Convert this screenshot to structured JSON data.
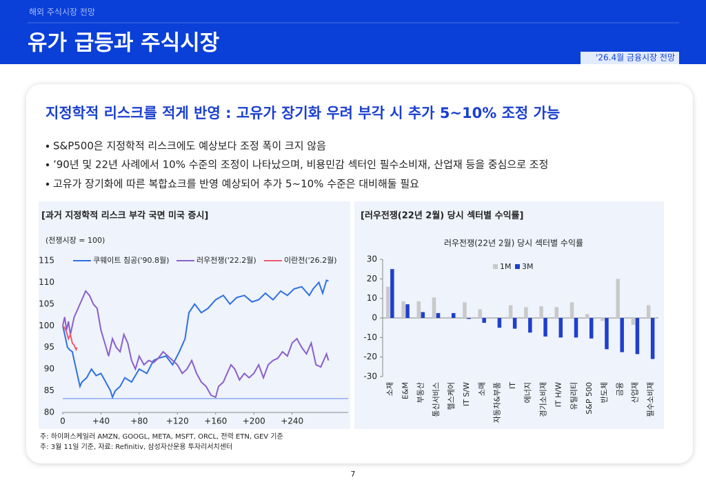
{
  "header": {
    "section": "해외 주식시장 전망",
    "title": "유가 급등과 주식시장",
    "badge": "'26.4월 금융시장 전망"
  },
  "headline": "지정학적 리스크를 적게 반영 : 고유가 장기화 우려 부각 시 추가 5~10% 조정 가능",
  "bullets": [
    "S&P500은 지정학적 리스크에도 예상보다 조정 폭이 크지 않음",
    "’90년 및 22년 사례에서 10% 수준의 조정이 나타났으며, 비용민감 섹터인 필수소비재, 산업재 등을 중심으로 조정",
    "고유가 장기화에 따른 복합쇼크를 반영 예상되어 추가 5~10% 수준은 대비해둘 필요"
  ],
  "chart_data": [
    {
      "type": "line",
      "panel_title": "[과거 지정학적 리스크 부각 국면 미국 증시]",
      "unit_label": "(전쟁시장 = 100)",
      "xlim": [
        0,
        290
      ],
      "xticks": [
        0,
        {
          "value": 40,
          "label": "+40"
        },
        {
          "value": 80,
          "label": "+80"
        },
        {
          "value": 120,
          "label": "+120"
        },
        {
          "value": 160,
          "label": "+160"
        },
        {
          "value": 200,
          "label": "+200"
        },
        {
          "value": 240,
          "label": "+240"
        }
      ],
      "ylim": [
        80,
        115
      ],
      "yticks": [
        80,
        85,
        90,
        95,
        100,
        105,
        110,
        115
      ],
      "reference_line": {
        "value": 83.2,
        "color": "#7a9ee8"
      },
      "series": [
        {
          "name": "쿠웨이트 침공('90.8월)",
          "color": "#2f6fe0",
          "x": [
            0,
            3,
            5,
            7,
            10,
            12,
            15,
            18,
            20,
            25,
            30,
            35,
            40,
            45,
            50,
            52,
            55,
            60,
            65,
            72,
            80,
            88,
            95,
            100,
            108,
            115,
            122,
            128,
            132,
            138,
            145,
            152,
            160,
            168,
            175,
            182,
            190,
            198,
            205,
            212,
            220,
            228,
            235,
            242,
            250,
            258,
            262,
            268,
            272,
            276,
            278
          ],
          "values": [
            100,
            97,
            95,
            94.5,
            94,
            92,
            89,
            86,
            87,
            88,
            90,
            88.5,
            89,
            87,
            85,
            83.5,
            85,
            86,
            88,
            87,
            90,
            89,
            92,
            92.5,
            93,
            91,
            94,
            97,
            103,
            105,
            103,
            104,
            106,
            107,
            105,
            106.5,
            107,
            105.5,
            106,
            107.5,
            106,
            108,
            107,
            108.5,
            109,
            107,
            108.5,
            110,
            107.5,
            110.5,
            110.3
          ]
        },
        {
          "name": "러우전쟁('22.2월)",
          "color": "#8a5ec9",
          "x": [
            0,
            2,
            4,
            6,
            8,
            12,
            16,
            20,
            24,
            28,
            32,
            36,
            40,
            44,
            48,
            52,
            56,
            60,
            64,
            68,
            72,
            76,
            80,
            85,
            90,
            95,
            100,
            105,
            110,
            115,
            120,
            125,
            130,
            135,
            140,
            145,
            150,
            155,
            160,
            163,
            168,
            172,
            176,
            180,
            185,
            190,
            195,
            200,
            205,
            210,
            215,
            220,
            225,
            230,
            235,
            240,
            245,
            250,
            255,
            260,
            265,
            270,
            273,
            276,
            278
          ],
          "values": [
            100,
            102,
            99,
            101,
            98,
            102,
            104,
            106,
            108,
            107,
            105,
            104,
            99,
            96,
            93,
            97,
            95,
            94,
            98,
            96,
            92,
            90,
            93,
            91,
            92,
            91.5,
            92.5,
            94,
            93,
            92,
            91,
            89,
            90,
            92,
            89,
            87,
            86,
            84,
            83.5,
            86,
            87,
            89,
            91,
            90,
            87.5,
            89,
            88,
            89,
            91,
            88,
            91,
            92,
            92.5,
            94,
            93,
            96,
            97,
            95,
            93.5,
            96,
            91,
            90.5,
            92,
            93.5,
            92
          ]
        },
        {
          "name": "이란전('26.2월)",
          "color": "#f05a6e",
          "x": [
            0,
            2,
            4,
            6,
            8,
            10,
            12,
            14,
            15
          ],
          "values": [
            100,
            99.5,
            98.5,
            97,
            98,
            96,
            95.5,
            94.5,
            95
          ]
        }
      ]
    },
    {
      "type": "bar",
      "panel_title": "[러우전쟁(22년 2월) 당시 섹터별 수익률]",
      "title": "러우전쟁(22년 2월) 당시 섹터별 수익률",
      "categories": [
        "소재",
        "E&M",
        "부동산",
        "통신서비스",
        "헬스케어",
        "IT S/W",
        "소매",
        "자동차&부품",
        "IT",
        "에너지",
        "경기소비재",
        "IT H/W",
        "유틸리티",
        "S&P 500",
        "반도체",
        "금융",
        "산업재",
        "필수소비재"
      ],
      "ylim": [
        -30,
        30
      ],
      "yticks": [
        -30,
        -20,
        -10,
        0,
        10,
        20,
        30
      ],
      "series": [
        {
          "name": "1M",
          "color": "#c9c9c9",
          "values": [
            16,
            8.5,
            8.5,
            10.5,
            0.5,
            8,
            4.5,
            0,
            6.5,
            5.5,
            6,
            5.5,
            8,
            2,
            -1.5,
            20,
            -3.5,
            6.5
          ]
        },
        {
          "name": "3M",
          "color": "#1f3fcc",
          "values": [
            25,
            7,
            3,
            2.5,
            2.5,
            -0.5,
            -2.5,
            -5,
            -5.5,
            -7.5,
            -9.5,
            -10,
            -10,
            -10.5,
            -16,
            -17.5,
            -18.5,
            -21
          ]
        }
      ]
    }
  ],
  "footnotes": [
    "주: 하이퍼스케일러 AMZN, GOOGL, META, MSFT, ORCL, 전력 ETN, GEV 기준",
    "주: 3월 11일 기준, 자료: Refinitiv, 삼성자산운용 투자리서치센터"
  ],
  "page_number": "7"
}
